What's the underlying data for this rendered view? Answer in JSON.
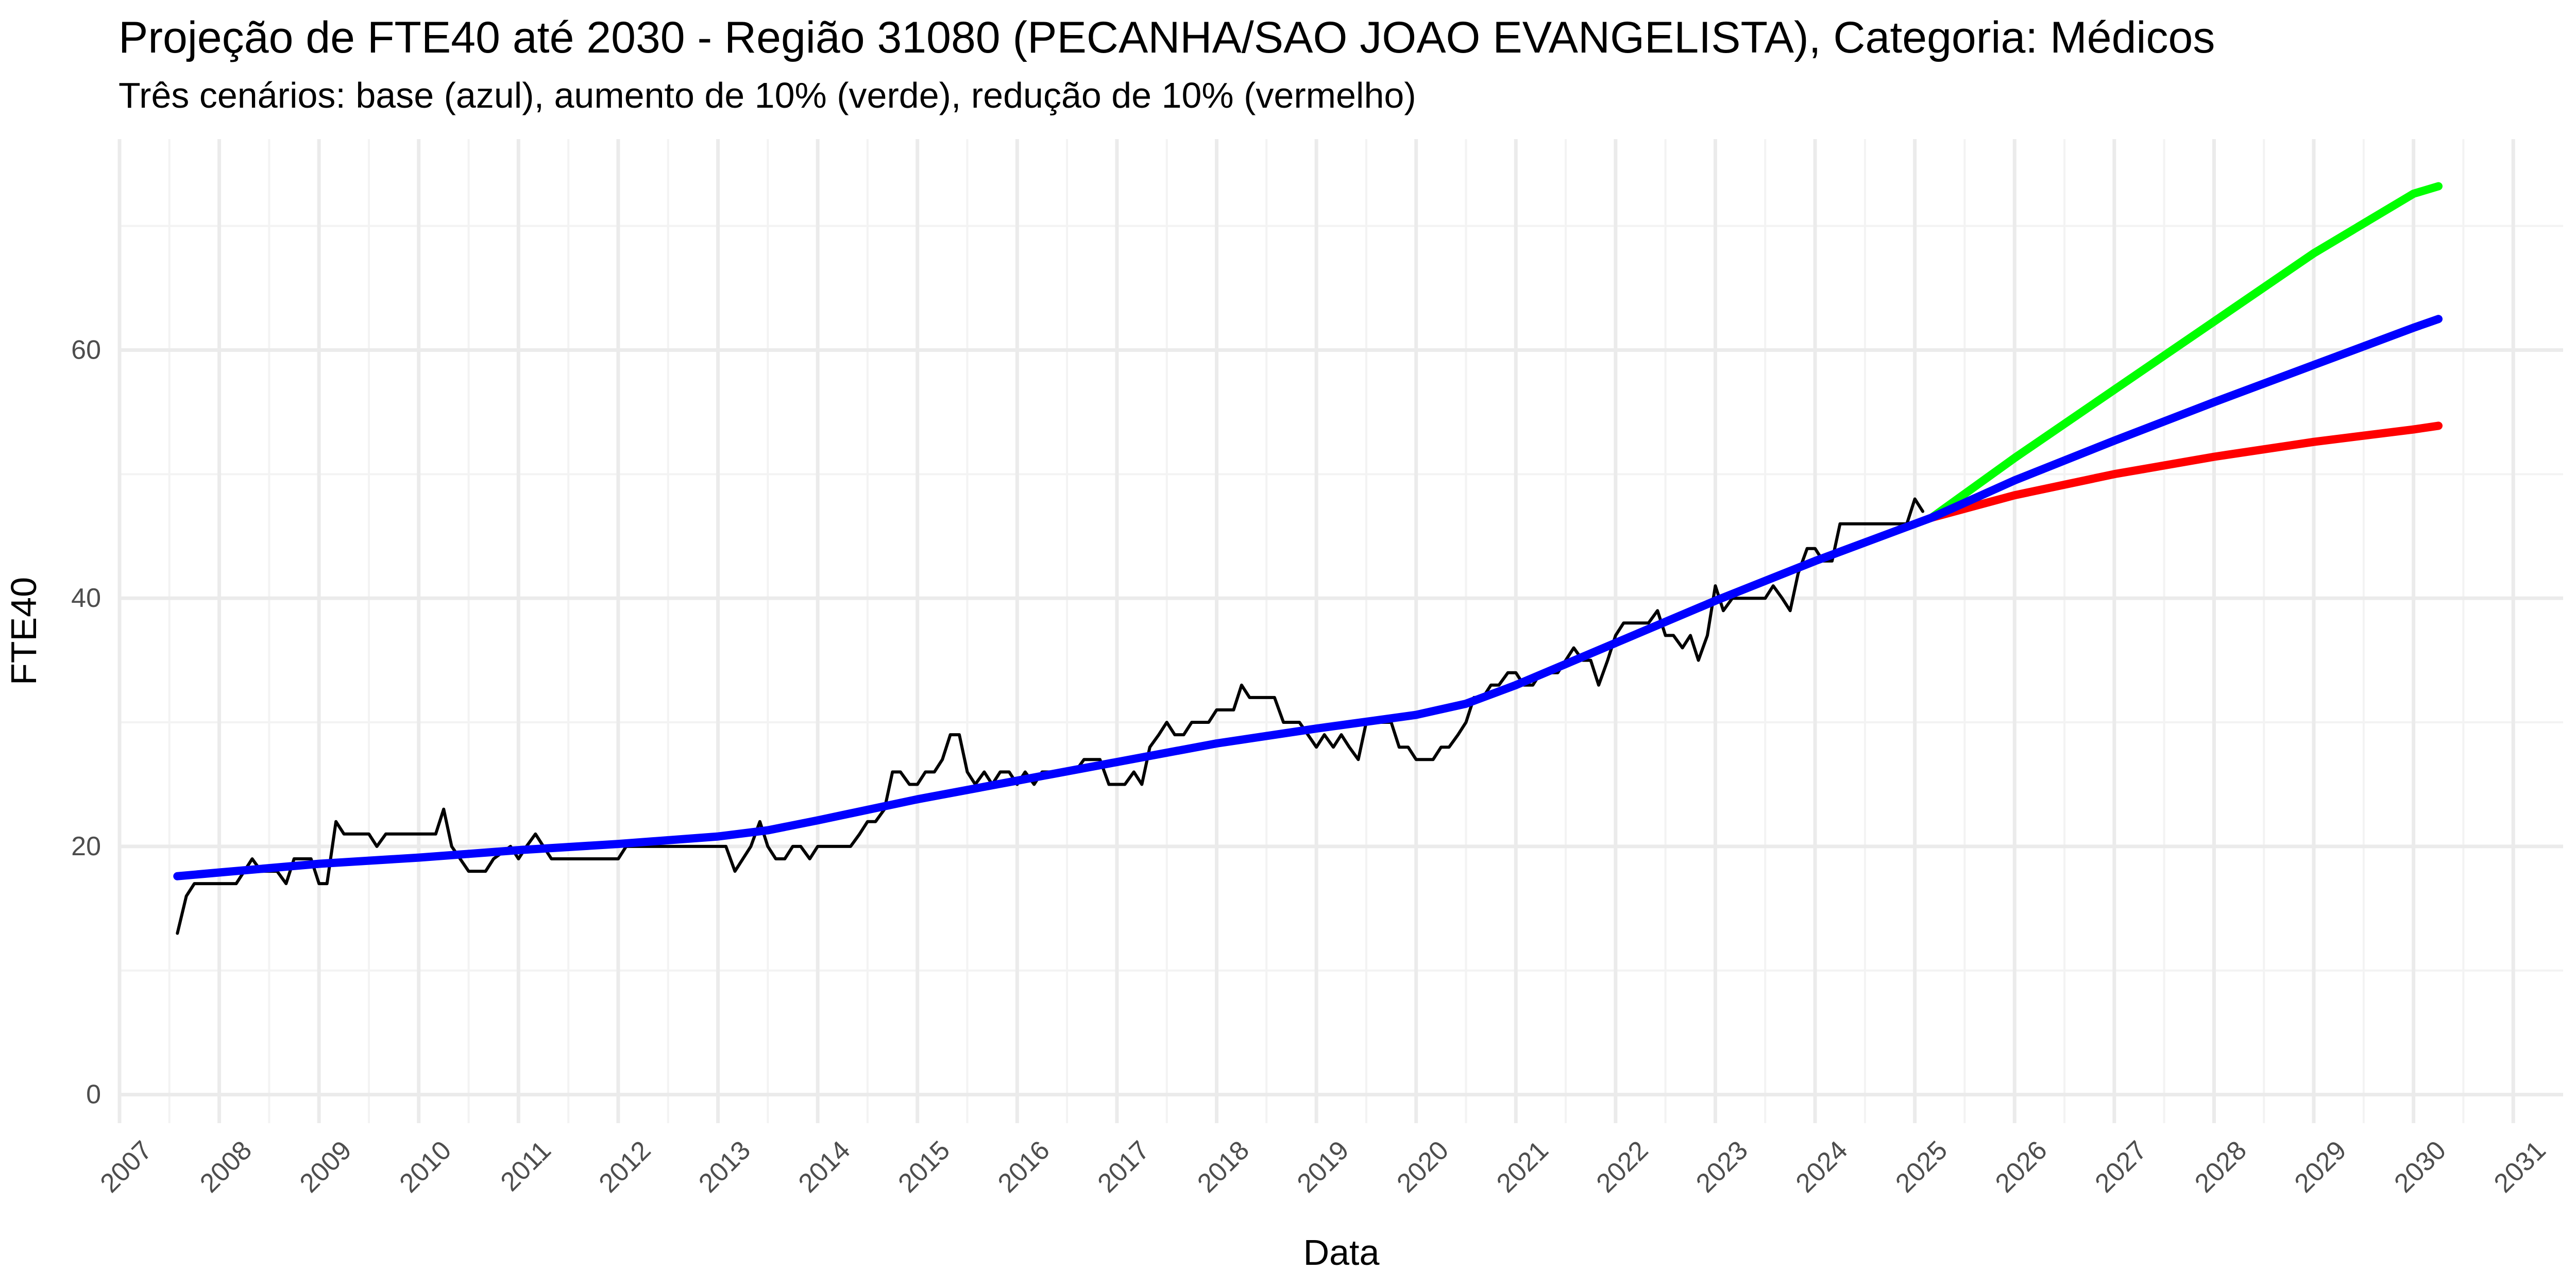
{
  "chart_data": {
    "type": "line",
    "title": "Projeção de FTE40 até 2030 - Região 31080 (PECANHA/SAO JOAO EVANGELISTA), Categoria: Médicos",
    "subtitle": "Três cenários: base (azul), aumento de 10% (verde), redução de 10% (vermelho)",
    "xlabel": "Data",
    "ylabel": "FTE40",
    "xlim": [
      2007.0,
      2031.5
    ],
    "ylim": [
      -2.3,
      77
    ],
    "x_ticks": [
      2007,
      2008,
      2009,
      2010,
      2011,
      2012,
      2013,
      2014,
      2015,
      2016,
      2017,
      2018,
      2019,
      2020,
      2021,
      2022,
      2023,
      2024,
      2025,
      2026,
      2027,
      2028,
      2029,
      2030,
      2031
    ],
    "x_tick_labels": [
      "2007",
      "2008",
      "2009",
      "2010",
      "2011",
      "2012",
      "2013",
      "2014",
      "2015",
      "2016",
      "2017",
      "2018",
      "2019",
      "2020",
      "2021",
      "2022",
      "2023",
      "2024",
      "2025",
      "2026",
      "2027",
      "2028",
      "2029",
      "2030",
      "2031"
    ],
    "y_ticks": [
      0,
      20,
      40,
      60
    ],
    "y_tick_labels": [
      "0",
      "20",
      "40",
      "60"
    ],
    "grid": true,
    "legend": "none",
    "series": [
      {
        "color": "#000000",
        "points": [
          [
            2007.58,
            13
          ],
          [
            2007.67,
            16
          ],
          [
            2007.75,
            17
          ],
          [
            2007.92,
            17
          ],
          [
            2008.17,
            17
          ],
          [
            2008.25,
            18
          ],
          [
            2008.33,
            19
          ],
          [
            2008.42,
            18
          ],
          [
            2008.58,
            18
          ],
          [
            2008.67,
            17
          ],
          [
            2008.75,
            19
          ],
          [
            2008.92,
            19
          ],
          [
            2009.0,
            17
          ],
          [
            2009.08,
            17
          ],
          [
            2009.17,
            22
          ],
          [
            2009.25,
            21
          ],
          [
            2009.5,
            21
          ],
          [
            2009.58,
            20
          ],
          [
            2009.67,
            21
          ],
          [
            2010.08,
            21
          ],
          [
            2010.17,
            21
          ],
          [
            2010.25,
            23
          ],
          [
            2010.33,
            20
          ],
          [
            2010.5,
            18
          ],
          [
            2010.67,
            18
          ],
          [
            2010.75,
            19
          ],
          [
            2010.92,
            20
          ],
          [
            2011.0,
            19
          ],
          [
            2011.08,
            20
          ],
          [
            2011.17,
            21
          ],
          [
            2011.33,
            19
          ],
          [
            2011.58,
            19
          ],
          [
            2011.92,
            19
          ],
          [
            2012.0,
            19
          ],
          [
            2012.08,
            20
          ],
          [
            2012.17,
            20
          ],
          [
            2012.92,
            20
          ],
          [
            2013.08,
            20
          ],
          [
            2013.17,
            18
          ],
          [
            2013.33,
            20
          ],
          [
            2013.42,
            22
          ],
          [
            2013.5,
            20
          ],
          [
            2013.58,
            19
          ],
          [
            2013.67,
            19
          ],
          [
            2013.75,
            20
          ],
          [
            2013.83,
            20
          ],
          [
            2013.92,
            19
          ],
          [
            2014.0,
            20
          ],
          [
            2014.33,
            20
          ],
          [
            2014.42,
            21
          ],
          [
            2014.5,
            22
          ],
          [
            2014.58,
            22
          ],
          [
            2014.67,
            23
          ],
          [
            2014.75,
            26
          ],
          [
            2014.83,
            26
          ],
          [
            2014.92,
            25
          ],
          [
            2015.0,
            25
          ],
          [
            2015.08,
            26
          ],
          [
            2015.17,
            26
          ],
          [
            2015.25,
            27
          ],
          [
            2015.33,
            29
          ],
          [
            2015.42,
            29
          ],
          [
            2015.5,
            26
          ],
          [
            2015.58,
            25
          ],
          [
            2015.67,
            26
          ],
          [
            2015.75,
            25
          ],
          [
            2015.83,
            26
          ],
          [
            2015.92,
            26
          ],
          [
            2016.0,
            25
          ],
          [
            2016.08,
            26
          ],
          [
            2016.17,
            25
          ],
          [
            2016.25,
            26
          ],
          [
            2016.33,
            26
          ],
          [
            2016.5,
            26
          ],
          [
            2016.58,
            26
          ],
          [
            2016.67,
            27
          ],
          [
            2016.83,
            27
          ],
          [
            2016.92,
            25
          ],
          [
            2017.08,
            25
          ],
          [
            2017.17,
            26
          ],
          [
            2017.25,
            25
          ],
          [
            2017.33,
            28
          ],
          [
            2017.42,
            29
          ],
          [
            2017.5,
            30
          ],
          [
            2017.58,
            29
          ],
          [
            2017.67,
            29
          ],
          [
            2017.75,
            30
          ],
          [
            2017.92,
            30
          ],
          [
            2018.0,
            31
          ],
          [
            2018.17,
            31
          ],
          [
            2018.25,
            33
          ],
          [
            2018.33,
            32
          ],
          [
            2018.58,
            32
          ],
          [
            2018.67,
            30
          ],
          [
            2018.83,
            30
          ],
          [
            2019.0,
            28
          ],
          [
            2019.08,
            29
          ],
          [
            2019.17,
            28
          ],
          [
            2019.25,
            29
          ],
          [
            2019.33,
            28
          ],
          [
            2019.42,
            27
          ],
          [
            2019.5,
            30
          ],
          [
            2019.58,
            30
          ],
          [
            2019.75,
            30
          ],
          [
            2019.83,
            28
          ],
          [
            2019.92,
            28
          ],
          [
            2020.0,
            27
          ],
          [
            2020.17,
            27
          ],
          [
            2020.25,
            28
          ],
          [
            2020.33,
            28
          ],
          [
            2020.42,
            29
          ],
          [
            2020.5,
            30
          ],
          [
            2020.58,
            32
          ],
          [
            2020.67,
            32
          ],
          [
            2020.75,
            33
          ],
          [
            2020.83,
            33
          ],
          [
            2020.92,
            34
          ],
          [
            2021.0,
            34
          ],
          [
            2021.08,
            33
          ],
          [
            2021.17,
            33
          ],
          [
            2021.25,
            34
          ],
          [
            2021.33,
            34
          ],
          [
            2021.42,
            34
          ],
          [
            2021.5,
            35
          ],
          [
            2021.58,
            36
          ],
          [
            2021.67,
            35
          ],
          [
            2021.75,
            35
          ],
          [
            2021.83,
            33
          ],
          [
            2021.92,
            35
          ],
          [
            2022.0,
            37
          ],
          [
            2022.08,
            38
          ],
          [
            2022.33,
            38
          ],
          [
            2022.42,
            39
          ],
          [
            2022.5,
            37
          ],
          [
            2022.58,
            37
          ],
          [
            2022.67,
            36
          ],
          [
            2022.75,
            37
          ],
          [
            2022.83,
            35
          ],
          [
            2022.92,
            37
          ],
          [
            2023.0,
            41
          ],
          [
            2023.08,
            39
          ],
          [
            2023.17,
            40
          ],
          [
            2023.5,
            40
          ],
          [
            2023.58,
            41
          ],
          [
            2023.67,
            40
          ],
          [
            2023.75,
            39
          ],
          [
            2023.83,
            42
          ],
          [
            2023.92,
            44
          ],
          [
            2024.0,
            44
          ],
          [
            2024.08,
            43
          ],
          [
            2024.17,
            43
          ],
          [
            2024.25,
            46
          ],
          [
            2024.83,
            46
          ],
          [
            2024.92,
            46
          ],
          [
            2025.0,
            48
          ],
          [
            2025.08,
            47
          ]
        ]
      },
      {
        "color": "#0000ff",
        "points": [
          [
            2007.58,
            17.6
          ],
          [
            2008.0,
            17.9
          ],
          [
            2009.0,
            18.6
          ],
          [
            2010.0,
            19.1
          ],
          [
            2011.0,
            19.7
          ],
          [
            2012.0,
            20.2
          ],
          [
            2013.0,
            20.8
          ],
          [
            2013.5,
            21.3
          ],
          [
            2014.0,
            22.1
          ],
          [
            2015.0,
            23.8
          ],
          [
            2016.0,
            25.3
          ],
          [
            2017.0,
            26.8
          ],
          [
            2018.0,
            28.3
          ],
          [
            2019.0,
            29.5
          ],
          [
            2020.0,
            30.6
          ],
          [
            2020.5,
            31.5
          ],
          [
            2021.0,
            33.0
          ],
          [
            2022.0,
            36.4
          ],
          [
            2023.0,
            39.8
          ],
          [
            2024.0,
            43.0
          ],
          [
            2025.17,
            46.5
          ],
          [
            2026.0,
            49.5
          ],
          [
            2027.0,
            52.7
          ],
          [
            2028.0,
            55.8
          ],
          [
            2029.0,
            58.8
          ],
          [
            2030.0,
            61.8
          ],
          [
            2030.25,
            62.5
          ]
        ]
      },
      {
        "color": "#00ff00",
        "points": [
          [
            2025.17,
            46.5
          ],
          [
            2026.0,
            51.3
          ],
          [
            2027.0,
            56.8
          ],
          [
            2028.0,
            62.3
          ],
          [
            2029.0,
            67.8
          ],
          [
            2030.0,
            72.6
          ],
          [
            2030.25,
            73.2
          ]
        ]
      },
      {
        "color": "#ff0000",
        "points": [
          [
            2025.17,
            46.5
          ],
          [
            2026.0,
            48.3
          ],
          [
            2027.0,
            50.0
          ],
          [
            2028.0,
            51.4
          ],
          [
            2029.0,
            52.6
          ],
          [
            2030.0,
            53.6
          ],
          [
            2030.25,
            53.9
          ]
        ]
      }
    ]
  }
}
